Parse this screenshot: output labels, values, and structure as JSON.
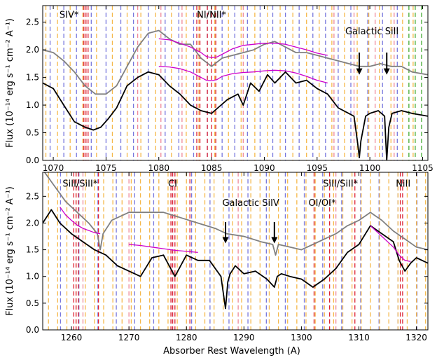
{
  "chart_data": [
    {
      "type": "line",
      "panel": "top",
      "title": "",
      "xlabel": "",
      "ylabel": "Flux (10⁻¹⁴ erg s⁻¹ cm⁻² A⁻¹)",
      "xlim": [
        1069,
        1105.5
      ],
      "ylim": [
        0,
        2.8
      ],
      "xticks": [
        1070,
        1075,
        1080,
        1085,
        1090,
        1095,
        1100,
        1105
      ],
      "yticks": [
        0.0,
        0.5,
        1.0,
        1.5,
        2.0,
        2.5
      ],
      "ytick_labels": [
        "0.0",
        "0.5",
        "1.0",
        "1.5",
        "2.0",
        "2.5"
      ],
      "series": [
        {
          "name": "Spectrum (black)",
          "color": "#000000",
          "x": [
            1069.0,
            1070.0,
            1071.0,
            1072.0,
            1073.0,
            1073.8,
            1074.5,
            1075.2,
            1076.0,
            1077.0,
            1078.0,
            1079.0,
            1080.0,
            1081.0,
            1082.0,
            1083.0,
            1084.0,
            1085.0,
            1085.6,
            1086.5,
            1087.5,
            1088.0,
            1088.7,
            1089.5,
            1090.3,
            1091.0,
            1092.0,
            1093.0,
            1094.0,
            1095.0,
            1096.0,
            1097.0,
            1098.0,
            1098.5,
            1098.85,
            1099.0,
            1099.15,
            1099.6,
            1100.0,
            1100.8,
            1101.4,
            1101.6,
            1101.8,
            1102.1,
            1103.0,
            1104.0,
            1105.5
          ],
          "y": [
            1.4,
            1.3,
            1.0,
            0.7,
            0.6,
            0.55,
            0.6,
            0.75,
            0.95,
            1.35,
            1.5,
            1.6,
            1.55,
            1.35,
            1.2,
            1.0,
            0.9,
            0.85,
            0.95,
            1.1,
            1.2,
            1.0,
            1.4,
            1.25,
            1.55,
            1.4,
            1.6,
            1.4,
            1.45,
            1.3,
            1.2,
            0.95,
            0.85,
            0.8,
            0.3,
            0.05,
            0.35,
            0.8,
            0.85,
            0.9,
            0.8,
            0.0,
            0.6,
            0.85,
            0.9,
            0.85,
            0.8
          ]
        },
        {
          "name": "Spectrum (gray)",
          "color": "#808080",
          "x": [
            1069.0,
            1070.0,
            1071.0,
            1072.0,
            1073.0,
            1074.0,
            1075.0,
            1076.0,
            1077.0,
            1078.0,
            1079.0,
            1080.0,
            1081.0,
            1082.0,
            1083.0,
            1084.0,
            1085.0,
            1086.0,
            1087.0,
            1088.0,
            1089.0,
            1090.0,
            1091.0,
            1092.0,
            1093.0,
            1094.0,
            1095.0,
            1096.0,
            1097.0,
            1098.0,
            1099.0,
            1100.0,
            1101.0,
            1102.0,
            1103.0,
            1104.0,
            1105.5
          ],
          "y": [
            2.0,
            1.95,
            1.8,
            1.6,
            1.35,
            1.2,
            1.2,
            1.35,
            1.7,
            2.05,
            2.3,
            2.35,
            2.2,
            2.1,
            2.1,
            1.85,
            1.7,
            1.85,
            1.9,
            1.95,
            2.0,
            2.1,
            2.15,
            2.05,
            1.95,
            1.95,
            1.9,
            1.85,
            1.8,
            1.75,
            1.7,
            1.7,
            1.75,
            1.7,
            1.7,
            1.6,
            1.55
          ]
        },
        {
          "name": "Continuum fit (upper)",
          "color": "#cc00cc",
          "x": [
            1080.0,
            1081.0,
            1082.0,
            1083.0,
            1084.0,
            1084.5,
            1085.0,
            1085.5,
            1086.0,
            1087.0,
            1088.0,
            1089.0,
            1090.0,
            1091.0,
            1092.0,
            1093.0,
            1094.0,
            1095.0,
            1096.0
          ],
          "y": [
            2.2,
            2.18,
            2.12,
            2.05,
            1.95,
            1.88,
            1.86,
            1.87,
            1.92,
            2.02,
            2.08,
            2.1,
            2.12,
            2.12,
            2.1,
            2.05,
            2.0,
            1.94,
            1.9
          ]
        },
        {
          "name": "Continuum fit (lower)",
          "color": "#cc00cc",
          "x": [
            1080.0,
            1081.0,
            1082.0,
            1083.0,
            1084.0,
            1084.5,
            1085.0,
            1085.5,
            1086.0,
            1087.0,
            1088.0,
            1089.0,
            1090.0,
            1091.0,
            1092.0,
            1093.0,
            1094.0,
            1095.0,
            1096.0
          ],
          "y": [
            1.7,
            1.69,
            1.66,
            1.6,
            1.5,
            1.45,
            1.44,
            1.46,
            1.52,
            1.57,
            1.59,
            1.6,
            1.62,
            1.63,
            1.62,
            1.58,
            1.52,
            1.45,
            1.4
          ]
        }
      ],
      "line_markers": {
        "blue": [
          1069.7,
          1071.0,
          1072.2,
          1073.6,
          1075.0,
          1076.4,
          1077.6,
          1079.0,
          1080.6,
          1081.9,
          1083.3,
          1084.6,
          1086.0,
          1087.2,
          1088.4,
          1089.6,
          1090.8,
          1092.0,
          1093.3,
          1094.6,
          1095.8,
          1097.0,
          1098.2,
          1099.8,
          1101.2,
          1102.6
        ],
        "orange": [
          1069.3,
          1070.4,
          1071.6,
          1072.8,
          1074.1,
          1075.6,
          1077.0,
          1078.3,
          1079.7,
          1081.2,
          1082.6,
          1083.8,
          1085.3,
          1086.6,
          1087.8,
          1089.1,
          1090.3,
          1091.5,
          1092.7,
          1094.0,
          1095.2,
          1096.4,
          1097.6,
          1098.8,
          1099.9,
          1100.9,
          1102.0,
          1103.1,
          1104.1
        ],
        "red": [
          1072.9,
          1073.1,
          1073.3,
          1083.6,
          1083.9,
          1084.6,
          1085.0,
          1085.4
        ],
        "green": [
          1103.7,
          1104.3,
          1104.9
        ],
        "pink": [
          1078.0,
          1080.2,
          1082.2,
          1088.0,
          1096.6,
          1098.5,
          1100.5,
          1102.3
        ]
      },
      "annotations": [
        {
          "text": "SIV*",
          "x": 1071.5,
          "y": 2.58
        },
        {
          "text": "NI/NII*",
          "x": 1085.0,
          "y": 2.58
        },
        {
          "text": "Galactic SiII",
          "x": 1100.2,
          "y": 2.28
        }
      ],
      "arrows": [
        {
          "x": 1099.0,
          "y_from": 1.95,
          "y_to": 1.55
        },
        {
          "x": 1101.6,
          "y_from": 1.95,
          "y_to": 1.55
        }
      ]
    },
    {
      "type": "line",
      "panel": "bottom",
      "title": "",
      "xlabel": "Absorber Rest Wavelength (A)",
      "ylabel": "Flux (10⁻¹⁴ erg s⁻¹ cm⁻² A⁻¹)",
      "xlim": [
        1255,
        1322
      ],
      "ylim": [
        0,
        2.95
      ],
      "xticks": [
        1260,
        1270,
        1280,
        1290,
        1300,
        1310,
        1320
      ],
      "yticks": [
        0.0,
        0.5,
        1.0,
        1.5,
        2.0,
        2.5
      ],
      "ytick_labels": [
        "0.0",
        "0.5",
        "1.0",
        "1.5",
        "2.0",
        "2.5"
      ],
      "series": [
        {
          "name": "Spectrum (black)",
          "color": "#000000",
          "x": [
            1255.0,
            1256.5,
            1258.0,
            1260.0,
            1262.0,
            1264.0,
            1266.0,
            1268.0,
            1270.0,
            1272.0,
            1274.0,
            1276.0,
            1278.0,
            1280.0,
            1282.0,
            1284.0,
            1286.0,
            1286.8,
            1287.2,
            1287.6,
            1288.5,
            1290.0,
            1292.0,
            1294.0,
            1295.3,
            1295.8,
            1296.5,
            1298.0,
            1300.0,
            1302.0,
            1304.0,
            1306.0,
            1308.0,
            1310.0,
            1312.0,
            1314.0,
            1316.0,
            1317.0,
            1318.0,
            1319.0,
            1320.0,
            1322.0
          ],
          "y": [
            2.0,
            2.25,
            2.0,
            1.8,
            1.65,
            1.5,
            1.4,
            1.2,
            1.1,
            1.0,
            1.35,
            1.4,
            1.0,
            1.4,
            1.3,
            1.3,
            1.0,
            0.4,
            0.9,
            1.05,
            1.2,
            1.05,
            1.1,
            0.95,
            0.8,
            1.0,
            1.05,
            1.0,
            0.95,
            0.8,
            0.95,
            1.15,
            1.45,
            1.6,
            1.95,
            1.8,
            1.65,
            1.3,
            1.1,
            1.25,
            1.35,
            1.25
          ]
        },
        {
          "name": "Spectrum (gray)",
          "color": "#808080",
          "x": [
            1255.0,
            1257.0,
            1259.0,
            1261.0,
            1263.0,
            1264.5,
            1265.0,
            1265.5,
            1267.0,
            1270.0,
            1273.0,
            1276.0,
            1279.0,
            1282.0,
            1285.0,
            1287.0,
            1290.0,
            1293.0,
            1295.0,
            1295.5,
            1296.0,
            1298.0,
            1300.0,
            1302.0,
            1304.0,
            1306.0,
            1308.0,
            1310.0,
            1312.0,
            1314.0,
            1316.0,
            1318.0,
            1320.0,
            1322.0
          ],
          "y": [
            3.0,
            2.7,
            2.4,
            2.2,
            2.0,
            1.8,
            1.5,
            1.8,
            2.05,
            2.2,
            2.2,
            2.2,
            2.1,
            2.0,
            1.9,
            1.8,
            1.75,
            1.65,
            1.6,
            1.4,
            1.6,
            1.55,
            1.5,
            1.6,
            1.7,
            1.8,
            1.95,
            2.05,
            2.2,
            2.05,
            1.85,
            1.7,
            1.55,
            1.5
          ]
        },
        {
          "name": "Continuum fit (upper)",
          "color": "#cc00cc",
          "x": [
            1258.0,
            1259.0,
            1260.0,
            1261.0,
            1262.0,
            1263.0,
            1264.0,
            1265.0
          ],
          "y": [
            2.3,
            2.15,
            2.05,
            1.96,
            1.9,
            1.86,
            1.82,
            1.8
          ]
        },
        {
          "name": "Continuum fit (lower)",
          "color": "#cc00cc",
          "x": [
            1270.0,
            1272.0,
            1274.0,
            1276.0,
            1278.0,
            1280.0,
            1282.0
          ],
          "y": [
            1.6,
            1.58,
            1.55,
            1.52,
            1.49,
            1.47,
            1.45
          ]
        },
        {
          "name": "Continuum fit (NII)",
          "color": "#cc00cc",
          "x": [
            1312.0,
            1313.0,
            1314.0,
            1315.0,
            1316.0,
            1317.0,
            1318.0,
            1319.0
          ],
          "y": [
            1.95,
            1.85,
            1.75,
            1.65,
            1.55,
            1.4,
            1.3,
            1.28
          ]
        }
      ],
      "line_markers": {
        "blue": [
          1258.1,
          1261.3,
          1264.6,
          1267.8,
          1271.0,
          1274.3,
          1277.6,
          1280.9,
          1284.1,
          1287.4,
          1290.7,
          1293.9,
          1297.2,
          1300.5,
          1303.7,
          1307.0,
          1310.3,
          1313.5,
          1316.8,
          1320.1
        ],
        "orange": [
          1256.0,
          1257.6,
          1259.2,
          1260.8,
          1262.4,
          1264.0,
          1265.6,
          1267.2,
          1268.8,
          1270.4,
          1272.0,
          1273.6,
          1275.2,
          1276.8,
          1278.4,
          1280.0,
          1281.6,
          1283.2,
          1284.8,
          1286.4,
          1288.0,
          1289.6,
          1291.2,
          1292.8,
          1294.4,
          1296.0,
          1297.6,
          1299.2,
          1300.8,
          1302.4,
          1304.0,
          1305.6,
          1307.2,
          1308.8,
          1310.4,
          1312.0,
          1313.6,
          1315.2,
          1316.8,
          1318.4,
          1320.0,
          1321.6
        ],
        "red": [
          1260.4,
          1260.8,
          1261.2,
          1264.7,
          1277.3,
          1277.6,
          1278.0,
          1280.6,
          1302.2,
          1304.9,
          1309.3,
          1317.2,
          1317.6
        ],
        "pink": [
          1262.0,
          1270.0,
          1289.0,
          1306.0
        ]
      },
      "annotations": [
        {
          "text": "SiII/SiII*",
          "x": 1261.5,
          "y": 2.68
        },
        {
          "text": "CI",
          "x": 1277.6,
          "y": 2.68
        },
        {
          "text": "Galactic SiIV",
          "x": 1291.2,
          "y": 2.32
        },
        {
          "text": "SiII/SiII*",
          "x": 1306.8,
          "y": 2.68
        },
        {
          "text": "OI/OI*",
          "x": 1303.6,
          "y": 2.32
        },
        {
          "text": "NiII",
          "x": 1317.7,
          "y": 2.68
        }
      ],
      "arrows": [
        {
          "x": 1286.8,
          "y_from": 2.02,
          "y_to": 1.62
        },
        {
          "x": 1295.3,
          "y_from": 2.02,
          "y_to": 1.62
        }
      ]
    }
  ]
}
